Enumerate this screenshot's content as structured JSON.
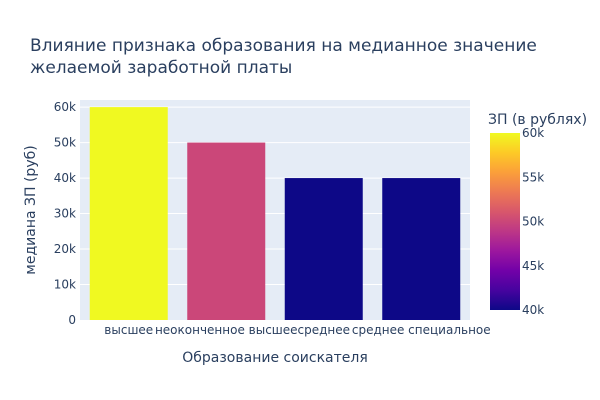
{
  "chart_data": {
    "type": "bar",
    "title_lines": [
      "Влияние признака образования на медианное значение",
      "желаемой заработной платы"
    ],
    "xlabel": "Образование соискателя",
    "ylabel": "медиана ЗП (руб)",
    "categories": [
      "высшее",
      "неоконченное высшее",
      "среднее",
      "среднее специальное"
    ],
    "values": [
      60000,
      50000,
      40000,
      40000
    ],
    "ylim": [
      0,
      62000
    ],
    "yticks": [
      0,
      10000,
      20000,
      30000,
      40000,
      50000,
      60000
    ],
    "ytick_labels": [
      "0",
      "10k",
      "20k",
      "30k",
      "40k",
      "50k",
      "60k"
    ],
    "grid": true,
    "colorbar": {
      "title": "ЗП (в рублях)",
      "range": [
        40000,
        60000
      ],
      "ticks": [
        40000,
        45000,
        50000,
        55000,
        60000
      ],
      "tick_labels": [
        "40k",
        "45k",
        "50k",
        "55k",
        "60k"
      ],
      "colorscale": [
        "#0d0887",
        "#46039f",
        "#7201a8",
        "#9c179e",
        "#bd3786",
        "#d8576b",
        "#ed7953",
        "#fb9f3a",
        "#fdca26",
        "#f0f921"
      ]
    },
    "plot_background": "#e5ecf6"
  }
}
